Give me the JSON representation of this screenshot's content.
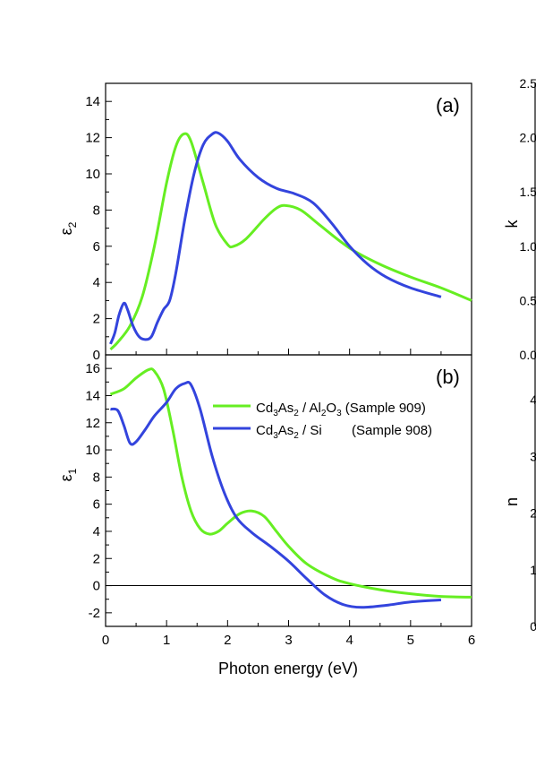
{
  "chart_data": [
    {
      "type": "line",
      "panel_label": "(a)",
      "ylabel": "ε",
      "ylabel_sub": "2",
      "xlim": [
        0,
        6
      ],
      "ylim": [
        0,
        15
      ],
      "yticks": [
        0,
        2,
        4,
        6,
        8,
        10,
        12,
        14
      ],
      "series": [
        {
          "name": "Cd3As2 / Al2O3 (Sample 909)",
          "color": "#66ee22",
          "points": [
            [
              0.08,
              0.3
            ],
            [
              0.2,
              0.7
            ],
            [
              0.4,
              1.6
            ],
            [
              0.6,
              3.2
            ],
            [
              0.8,
              6.0
            ],
            [
              1.0,
              9.5
            ],
            [
              1.15,
              11.5
            ],
            [
              1.28,
              12.2
            ],
            [
              1.4,
              11.8
            ],
            [
              1.6,
              9.5
            ],
            [
              1.8,
              7.2
            ],
            [
              2.0,
              6.1
            ],
            [
              2.1,
              6.0
            ],
            [
              2.3,
              6.4
            ],
            [
              2.6,
              7.5
            ],
            [
              2.8,
              8.1
            ],
            [
              2.95,
              8.25
            ],
            [
              3.2,
              8.0
            ],
            [
              3.5,
              7.2
            ],
            [
              4.0,
              5.9
            ],
            [
              4.5,
              5.0
            ],
            [
              5.0,
              4.3
            ],
            [
              5.5,
              3.7
            ],
            [
              6.0,
              3.0
            ]
          ]
        },
        {
          "name": "Cd3As2 / Si (Sample 908)",
          "color": "#3344dd",
          "points": [
            [
              0.08,
              0.6
            ],
            [
              0.15,
              1.2
            ],
            [
              0.22,
              2.2
            ],
            [
              0.3,
              2.85
            ],
            [
              0.36,
              2.5
            ],
            [
              0.45,
              1.6
            ],
            [
              0.55,
              1.0
            ],
            [
              0.65,
              0.85
            ],
            [
              0.75,
              1.0
            ],
            [
              0.85,
              1.8
            ],
            [
              0.95,
              2.5
            ],
            [
              1.05,
              3.0
            ],
            [
              1.15,
              4.5
            ],
            [
              1.3,
              7.5
            ],
            [
              1.45,
              10.0
            ],
            [
              1.6,
              11.6
            ],
            [
              1.75,
              12.2
            ],
            [
              1.85,
              12.25
            ],
            [
              2.0,
              11.8
            ],
            [
              2.2,
              10.8
            ],
            [
              2.5,
              9.8
            ],
            [
              2.8,
              9.2
            ],
            [
              3.1,
              8.9
            ],
            [
              3.4,
              8.4
            ],
            [
              3.7,
              7.3
            ],
            [
              4.0,
              6.0
            ],
            [
              4.3,
              5.0
            ],
            [
              4.6,
              4.3
            ],
            [
              5.0,
              3.7
            ],
            [
              5.5,
              3.2
            ]
          ]
        }
      ]
    },
    {
      "type": "line",
      "panel_label": "(b)",
      "ylabel": "ε",
      "ylabel_sub": "1",
      "xlabel": "Photon energy (eV)",
      "xlim": [
        0,
        6
      ],
      "ylim": [
        -3,
        17
      ],
      "xticks": [
        0,
        1,
        2,
        3,
        4,
        5,
        6
      ],
      "yticks": [
        -2,
        0,
        2,
        4,
        6,
        8,
        10,
        12,
        14,
        16
      ],
      "zero_line": true,
      "legend_position": "upper-right",
      "series": [
        {
          "name": "Cd3As2 / Al2O3 (Sample 909)",
          "color": "#66ee22",
          "points": [
            [
              0.08,
              14.1
            ],
            [
              0.3,
              14.5
            ],
            [
              0.5,
              15.3
            ],
            [
              0.7,
              15.9
            ],
            [
              0.8,
              15.8
            ],
            [
              0.95,
              14.5
            ],
            [
              1.1,
              11.5
            ],
            [
              1.25,
              8.0
            ],
            [
              1.4,
              5.5
            ],
            [
              1.55,
              4.2
            ],
            [
              1.7,
              3.8
            ],
            [
              1.85,
              4.0
            ],
            [
              2.0,
              4.6
            ],
            [
              2.2,
              5.3
            ],
            [
              2.4,
              5.5
            ],
            [
              2.6,
              5.1
            ],
            [
              2.8,
              4.0
            ],
            [
              3.0,
              2.9
            ],
            [
              3.3,
              1.6
            ],
            [
              3.7,
              0.6
            ],
            [
              4.0,
              0.15
            ],
            [
              4.5,
              -0.3
            ],
            [
              5.0,
              -0.6
            ],
            [
              5.5,
              -0.8
            ],
            [
              6.0,
              -0.85
            ]
          ]
        },
        {
          "name": "Cd3As2 / Si (Sample 908)",
          "color": "#3344dd",
          "points": [
            [
              0.08,
              13.0
            ],
            [
              0.2,
              12.9
            ],
            [
              0.3,
              11.8
            ],
            [
              0.4,
              10.5
            ],
            [
              0.5,
              10.6
            ],
            [
              0.65,
              11.5
            ],
            [
              0.8,
              12.5
            ],
            [
              1.0,
              13.5
            ],
            [
              1.15,
              14.5
            ],
            [
              1.3,
              14.9
            ],
            [
              1.4,
              14.8
            ],
            [
              1.55,
              13.0
            ],
            [
              1.75,
              9.5
            ],
            [
              1.95,
              6.8
            ],
            [
              2.15,
              5.0
            ],
            [
              2.4,
              3.9
            ],
            [
              2.7,
              2.9
            ],
            [
              3.0,
              1.8
            ],
            [
              3.3,
              0.5
            ],
            [
              3.6,
              -0.7
            ],
            [
              3.9,
              -1.4
            ],
            [
              4.2,
              -1.6
            ],
            [
              4.6,
              -1.45
            ],
            [
              5.0,
              -1.2
            ],
            [
              5.5,
              -1.05
            ]
          ]
        }
      ]
    },
    {
      "type": "line",
      "note_visible_only": "cropped right panels",
      "ylabel": "k",
      "yticks_text": [
        "2.5",
        "2.0",
        "1.5",
        "1.0",
        "0.5",
        "0.0"
      ]
    },
    {
      "type": "line",
      "ylabel": "n",
      "yticks_text": [
        "4",
        "3",
        "2",
        "1",
        "0"
      ]
    }
  ],
  "legend": {
    "items": [
      {
        "base": "Cd",
        "s1": "3",
        "mid": "As",
        "s2": "2",
        "rest1": " / Al",
        "s3": "2",
        "rest2": "O",
        "s4": "3",
        "tail": " (Sample 909)"
      },
      {
        "base": "Cd",
        "s1": "3",
        "mid": "As",
        "s2": "2",
        "rest1": " / Si",
        "tail": "(Sample 908)"
      }
    ]
  }
}
